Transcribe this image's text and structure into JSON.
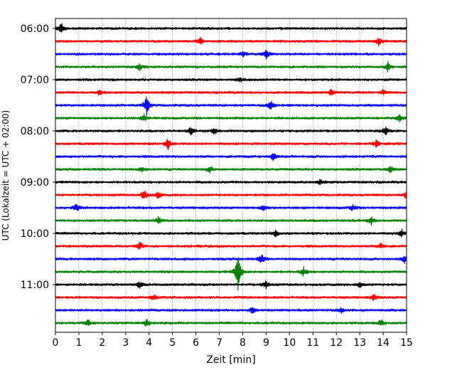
{
  "chart_data": {
    "type": "line",
    "title": "",
    "xlabel": "Zeit  [min]",
    "ylabel": "UTC (Lokalzeit = UTC + 02:00)",
    "xlim": [
      0,
      15
    ],
    "x_ticks": [
      "0",
      "1",
      "2",
      "3",
      "4",
      "5",
      "6",
      "7",
      "8",
      "9",
      "10",
      "11",
      "12",
      "13",
      "14",
      "15"
    ],
    "y_tick_labels": [
      "06:00",
      "07:00",
      "08:00",
      "09:00",
      "10:00",
      "11:00"
    ],
    "grid": "vertical dotted",
    "traces_per_hour": 4,
    "color_cycle": [
      "#000000",
      "#ff0000",
      "#0000ff",
      "#008000"
    ],
    "series": [
      {
        "start": "06:00",
        "color": "#000000",
        "events": [
          [
            0.25,
            0.9
          ]
        ]
      },
      {
        "start": "06:15",
        "color": "#ff0000",
        "events": [
          [
            6.2,
            0.6
          ],
          [
            13.8,
            0.7
          ]
        ]
      },
      {
        "start": "06:30",
        "color": "#0000ff",
        "events": [
          [
            8.0,
            0.5
          ],
          [
            9.0,
            0.7
          ]
        ]
      },
      {
        "start": "06:45",
        "color": "#008000",
        "events": [
          [
            3.6,
            0.6
          ],
          [
            14.2,
            0.8
          ]
        ]
      },
      {
        "start": "07:00",
        "color": "#000000",
        "events": [
          [
            7.9,
            0.4
          ]
        ]
      },
      {
        "start": "07:15",
        "color": "#ff0000",
        "events": [
          [
            1.9,
            0.5
          ],
          [
            11.8,
            0.6
          ],
          [
            14.0,
            0.5
          ]
        ]
      },
      {
        "start": "07:30",
        "color": "#0000ff",
        "events": [
          [
            3.9,
            1.5
          ],
          [
            9.2,
            0.8
          ]
        ]
      },
      {
        "start": "07:45",
        "color": "#008000",
        "events": [
          [
            3.8,
            0.6
          ],
          [
            14.7,
            0.7
          ]
        ]
      },
      {
        "start": "08:00",
        "color": "#000000",
        "events": [
          [
            5.8,
            0.6
          ],
          [
            6.8,
            0.6
          ],
          [
            14.1,
            0.7
          ]
        ]
      },
      {
        "start": "08:15",
        "color": "#ff0000",
        "events": [
          [
            4.8,
            0.9
          ],
          [
            13.7,
            0.6
          ]
        ]
      },
      {
        "start": "08:30",
        "color": "#0000ff",
        "events": [
          [
            9.3,
            0.7
          ]
        ]
      },
      {
        "start": "08:45",
        "color": "#008000",
        "events": [
          [
            3.7,
            0.5
          ],
          [
            6.6,
            0.5
          ],
          [
            14.3,
            0.8
          ]
        ]
      },
      {
        "start": "09:00",
        "color": "#000000",
        "events": [
          [
            11.3,
            0.4
          ]
        ]
      },
      {
        "start": "09:15",
        "color": "#ff0000",
        "events": [
          [
            3.8,
            0.9
          ],
          [
            4.4,
            0.6
          ],
          [
            15.0,
            0.6
          ]
        ]
      },
      {
        "start": "09:30",
        "color": "#0000ff",
        "events": [
          [
            0.9,
            0.6
          ],
          [
            8.9,
            0.6
          ],
          [
            12.7,
            0.5
          ]
        ]
      },
      {
        "start": "09:45",
        "color": "#008000",
        "events": [
          [
            4.4,
            0.6
          ],
          [
            13.5,
            0.6
          ]
        ]
      },
      {
        "start": "10:00",
        "color": "#000000",
        "events": [
          [
            9.4,
            0.6
          ],
          [
            14.8,
            0.6
          ]
        ]
      },
      {
        "start": "10:15",
        "color": "#ff0000",
        "events": [
          [
            3.6,
            0.7
          ],
          [
            13.9,
            0.6
          ]
        ]
      },
      {
        "start": "10:30",
        "color": "#0000ff",
        "events": [
          [
            8.8,
            0.8
          ],
          [
            14.9,
            0.6
          ]
        ]
      },
      {
        "start": "10:45",
        "color": "#008000",
        "events": [
          [
            7.8,
            3.1
          ],
          [
            10.6,
            0.7
          ]
        ]
      },
      {
        "start": "11:00",
        "color": "#000000",
        "events": [
          [
            3.6,
            0.5
          ],
          [
            9.0,
            0.6
          ],
          [
            13.0,
            0.5
          ]
        ]
      },
      {
        "start": "11:15",
        "color": "#ff0000",
        "events": [
          [
            4.2,
            0.5
          ],
          [
            13.6,
            0.6
          ]
        ]
      },
      {
        "start": "11:30",
        "color": "#0000ff",
        "events": [
          [
            8.4,
            0.5
          ],
          [
            12.2,
            0.5
          ]
        ]
      },
      {
        "start": "11:45",
        "color": "#008000",
        "events": [
          [
            1.4,
            0.6
          ],
          [
            3.9,
            0.7
          ],
          [
            13.9,
            0.6
          ]
        ]
      }
    ]
  }
}
